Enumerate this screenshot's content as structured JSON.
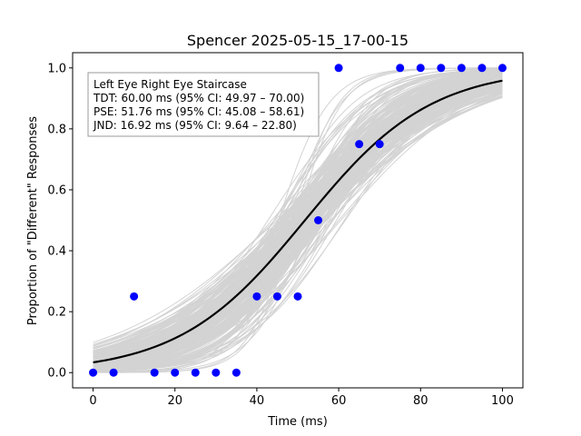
{
  "chart_data": {
    "type": "scatter",
    "title": "Spencer 2025-05-15_17-00-15",
    "xlabel": "Time (ms)",
    "ylabel": "Proportion of \"Different\" Responses",
    "xlim": [
      -5,
      105
    ],
    "ylim": [
      -0.05,
      1.05
    ],
    "x_ticks": [
      0,
      20,
      40,
      60,
      80,
      100
    ],
    "x_tick_labels": [
      "0",
      "20",
      "40",
      "60",
      "80",
      "100"
    ],
    "y_ticks": [
      0.0,
      0.2,
      0.4,
      0.6,
      0.8,
      1.0
    ],
    "y_tick_labels": [
      "0.0",
      "0.2",
      "0.4",
      "0.6",
      "0.8",
      "1.0"
    ],
    "grid": false,
    "legend_position": "upper-left",
    "annotation_lines": [
      "Left Eye Right Eye Staircase",
      "TDT: 60.00 ms (95% CI: 49.97 – 70.00)",
      "PSE: 51.76 ms (95% CI: 45.08 – 58.61)",
      "JND: 16.92 ms (95% CI: 9.64 – 22.80)"
    ],
    "points": {
      "color": "#0000ff",
      "x": [
        0,
        5,
        10,
        15,
        20,
        25,
        30,
        35,
        40,
        45,
        50,
        55,
        60,
        65,
        70,
        75,
        80,
        85,
        90,
        95,
        100
      ],
      "y": [
        0,
        0,
        0.25,
        0,
        0,
        0,
        0,
        0,
        0.25,
        0.25,
        0.25,
        0.5,
        1.0,
        0.75,
        0.75,
        1.0,
        1.0,
        1.0,
        1.0,
        1.0,
        1.0
      ]
    },
    "fit_curve": {
      "color": "#000000",
      "pse": 51.76,
      "jnd": 16.92
    },
    "bootstrap_curves": {
      "color": "#d3d3d3",
      "pse_range": [
        45.08,
        58.61
      ],
      "jnd_range": [
        9.64,
        22.8
      ]
    }
  }
}
